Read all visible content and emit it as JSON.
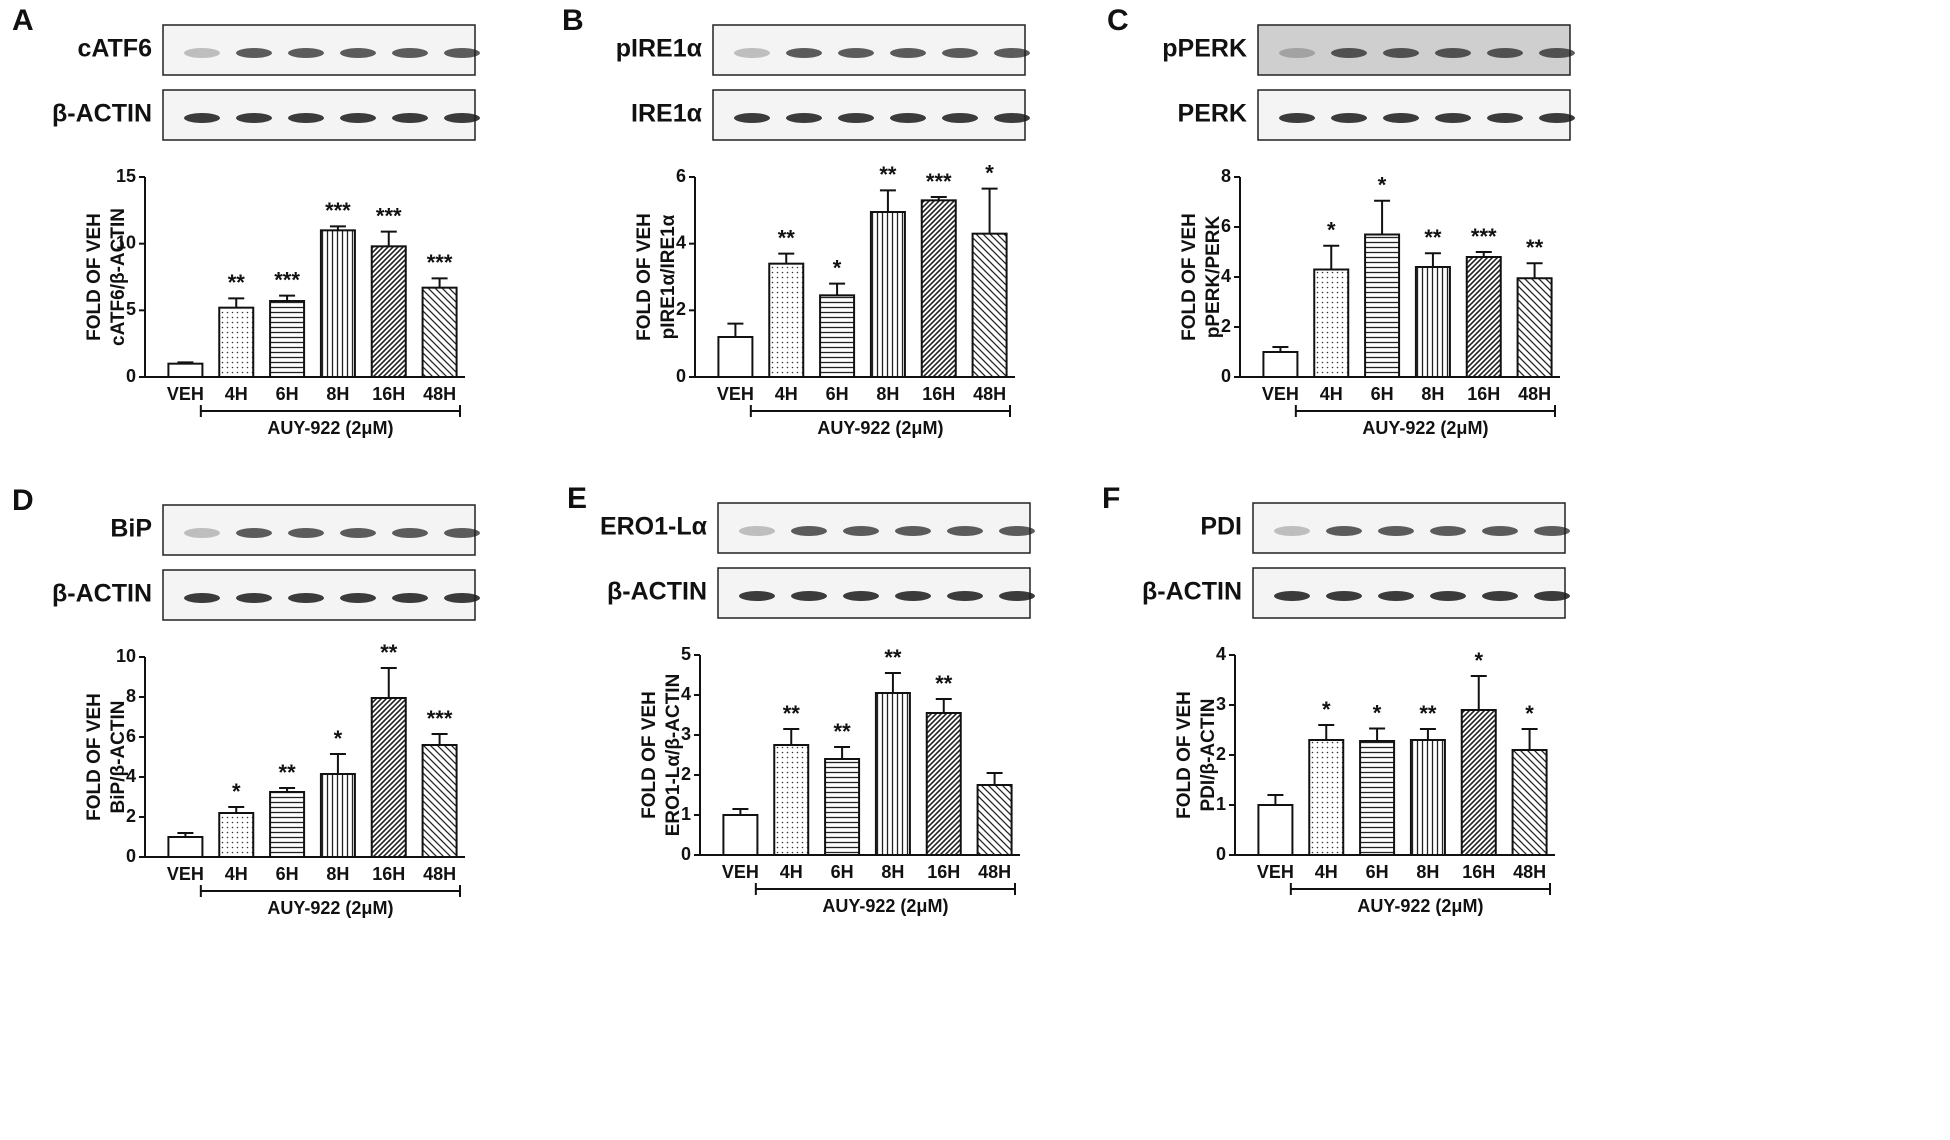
{
  "chart_data": [
    {
      "type": "bar",
      "panel": "A",
      "blots": [
        "cATF6",
        "β-ACTIN"
      ],
      "ylabel": [
        "FOLD OF VEH",
        "cATF6/β-ACTIN"
      ],
      "categories": [
        "VEH",
        "4H",
        "6H",
        "8H",
        "16H",
        "48H"
      ],
      "values": [
        1.0,
        5.2,
        5.7,
        11.0,
        9.8,
        6.7
      ],
      "errors": [
        0.1,
        0.7,
        0.4,
        0.3,
        1.1,
        0.7
      ],
      "annotations": [
        null,
        "**",
        "***",
        "***",
        "***",
        "***"
      ],
      "treatment": "AUY-922 (2μM)",
      "ylim": [
        0,
        15
      ],
      "yticks": [
        0,
        5,
        10,
        15
      ]
    },
    {
      "type": "bar",
      "panel": "B",
      "blots": [
        "pIRE1α",
        "IRE1α"
      ],
      "ylabel": [
        "FOLD OF VEH",
        "pIRE1α/IRE1α"
      ],
      "categories": [
        "VEH",
        "4H",
        "6H",
        "8H",
        "16H",
        "48H"
      ],
      "values": [
        1.2,
        3.4,
        2.45,
        4.95,
        5.3,
        4.3
      ],
      "errors": [
        0.4,
        0.3,
        0.35,
        0.65,
        0.1,
        1.35
      ],
      "annotations": [
        null,
        "**",
        "*",
        "**",
        "***",
        "*"
      ],
      "treatment": "AUY-922 (2μM)",
      "ylim": [
        0,
        6
      ],
      "yticks": [
        0,
        2,
        4,
        6
      ]
    },
    {
      "type": "bar",
      "panel": "C",
      "blots": [
        "pPERK",
        "PERK"
      ],
      "ylabel": [
        "FOLD OF VEH",
        "pPERK/PERK"
      ],
      "categories": [
        "VEH",
        "4H",
        "6H",
        "8H",
        "16H",
        "48H"
      ],
      "values": [
        1.0,
        4.3,
        5.7,
        4.4,
        4.8,
        3.95
      ],
      "errors": [
        0.2,
        0.95,
        1.35,
        0.55,
        0.2,
        0.6
      ],
      "annotations": [
        null,
        "*",
        "*",
        "**",
        "***",
        "**"
      ],
      "treatment": "AUY-922 (2μM)",
      "ylim": [
        0,
        8
      ],
      "yticks": [
        0,
        2,
        4,
        6,
        8
      ]
    },
    {
      "type": "bar",
      "panel": "D",
      "blots": [
        "BiP",
        "β-ACTIN"
      ],
      "ylabel": [
        "FOLD OF VEH",
        "BiP/β-ACTIN"
      ],
      "categories": [
        "VEH",
        "4H",
        "6H",
        "8H",
        "16H",
        "48H"
      ],
      "values": [
        1.0,
        2.2,
        3.25,
        4.15,
        7.95,
        5.6
      ],
      "errors": [
        0.2,
        0.3,
        0.2,
        1.0,
        1.5,
        0.55
      ],
      "annotations": [
        null,
        "*",
        "**",
        "*",
        "**",
        "***"
      ],
      "treatment": "AUY-922 (2μM)",
      "ylim": [
        0,
        10
      ],
      "yticks": [
        0,
        2,
        4,
        6,
        8,
        10
      ]
    },
    {
      "type": "bar",
      "panel": "E",
      "blots": [
        "ERO1-Lα",
        "β-ACTIN"
      ],
      "ylabel": [
        "FOLD OF VEH",
        "ERO1-Lα/β-ACTIN"
      ],
      "categories": [
        "VEH",
        "4H",
        "6H",
        "8H",
        "16H",
        "48H"
      ],
      "values": [
        1.0,
        2.75,
        2.4,
        4.05,
        3.55,
        1.75
      ],
      "errors": [
        0.15,
        0.4,
        0.3,
        0.5,
        0.35,
        0.3
      ],
      "annotations": [
        null,
        "**",
        "**",
        "**",
        "**",
        null
      ],
      "treatment": "AUY-922 (2μM)",
      "ylim": [
        0,
        5
      ],
      "yticks": [
        0,
        1,
        2,
        3,
        4,
        5
      ]
    },
    {
      "type": "bar",
      "panel": "F",
      "blots": [
        "PDI",
        "β-ACTIN"
      ],
      "ylabel": [
        "FOLD OF VEH",
        "PDI/β-ACTIN"
      ],
      "categories": [
        "VEH",
        "4H",
        "6H",
        "8H",
        "16H",
        "48H"
      ],
      "values": [
        1.0,
        2.3,
        2.28,
        2.3,
        2.9,
        2.1
      ],
      "errors": [
        0.2,
        0.3,
        0.25,
        0.22,
        0.68,
        0.42
      ],
      "annotations": [
        null,
        "*",
        "*",
        "**",
        "*",
        "*"
      ],
      "treatment": "AUY-922 (2μM)",
      "ylim": [
        0,
        4
      ],
      "yticks": [
        0,
        1,
        2,
        3,
        4
      ]
    }
  ]
}
